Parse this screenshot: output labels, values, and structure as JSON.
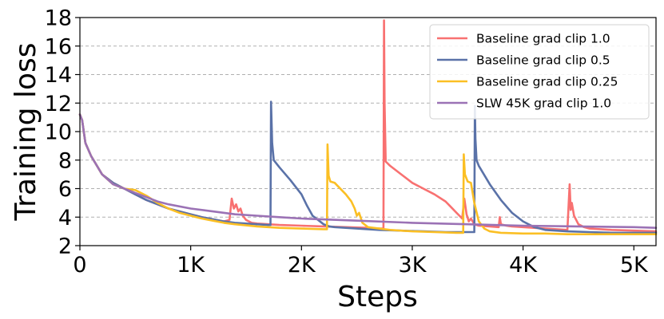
{
  "chart_data": {
    "type": "line",
    "title": "",
    "xlabel": "Steps",
    "ylabel": "Training loss",
    "xlim": [
      0,
      5200
    ],
    "ylim": [
      2,
      18
    ],
    "xticks": [
      0,
      1000,
      2000,
      3000,
      4000,
      5000
    ],
    "xtick_labels": [
      "0",
      "1K",
      "2K",
      "3K",
      "4K",
      "5K"
    ],
    "yticks": [
      2,
      4,
      6,
      8,
      10,
      12,
      14,
      16,
      18
    ],
    "ytick_labels": [
      "2",
      "4",
      "6",
      "8",
      "10",
      "12",
      "14",
      "16",
      "18"
    ],
    "grid": "horizontal-dashed",
    "legend_position": "top-right",
    "series": [
      {
        "name": "Baseline grad clip 1.0",
        "color": "#f87171",
        "x": [
          0,
          20,
          50,
          100,
          200,
          300,
          400,
          500,
          600,
          700,
          800,
          900,
          1000,
          1100,
          1200,
          1300,
          1350,
          1370,
          1390,
          1410,
          1430,
          1450,
          1470,
          1500,
          1550,
          1600,
          1700,
          1800,
          2000,
          2200,
          2400,
          2600,
          2700,
          2740,
          2745,
          2750,
          2760,
          2800,
          2900,
          3000,
          3100,
          3200,
          3300,
          3350,
          3400,
          3450,
          3470,
          3490,
          3510,
          3530,
          3560,
          3600,
          3700,
          3780,
          3790,
          3800,
          3850,
          3900,
          4000,
          4200,
          4400,
          4420,
          4430,
          4440,
          4460,
          4500,
          4550,
          4600,
          4800,
          5000,
          5200
        ],
        "values": [
          11.2,
          10.8,
          9.2,
          8.3,
          7.0,
          6.4,
          6.0,
          5.6,
          5.2,
          4.9,
          4.6,
          4.4,
          4.2,
          4.0,
          3.85,
          3.7,
          3.8,
          5.3,
          4.6,
          4.9,
          4.4,
          4.6,
          4.1,
          3.8,
          3.6,
          3.55,
          3.5,
          3.45,
          3.4,
          3.35,
          3.3,
          3.25,
          3.2,
          3.2,
          17.8,
          12.0,
          7.9,
          7.6,
          7.0,
          6.4,
          6.0,
          5.6,
          5.1,
          4.7,
          4.3,
          3.9,
          5.3,
          4.2,
          3.7,
          3.9,
          3.5,
          3.4,
          3.35,
          3.3,
          4.0,
          3.5,
          3.4,
          3.35,
          3.3,
          3.2,
          3.1,
          6.3,
          4.5,
          5.0,
          4.1,
          3.5,
          3.3,
          3.2,
          3.1,
          3.05,
          3.0
        ]
      },
      {
        "name": "Baseline grad clip 0.5",
        "color": "#5a72a8",
        "x": [
          0,
          20,
          50,
          100,
          200,
          300,
          400,
          500,
          600,
          700,
          800,
          900,
          1000,
          1100,
          1200,
          1300,
          1400,
          1500,
          1600,
          1700,
          1720,
          1725,
          1735,
          1750,
          1800,
          1900,
          2000,
          2050,
          2100,
          2150,
          2200,
          2250,
          2300,
          2500,
          2700,
          2900,
          3100,
          3300,
          3500,
          3560,
          3565,
          3570,
          3580,
          3600,
          3700,
          3800,
          3900,
          4000,
          4100,
          4200,
          4400,
          4600,
          4800,
          5000,
          5200
        ],
        "values": [
          11.2,
          10.8,
          9.2,
          8.3,
          7.0,
          6.4,
          6.0,
          5.6,
          5.2,
          4.9,
          4.6,
          4.4,
          4.2,
          4.0,
          3.85,
          3.7,
          3.6,
          3.55,
          3.5,
          3.45,
          3.45,
          12.1,
          9.2,
          8.0,
          7.5,
          6.6,
          5.6,
          4.8,
          4.1,
          3.8,
          3.5,
          3.35,
          3.3,
          3.2,
          3.1,
          3.05,
          3.0,
          2.95,
          2.95,
          2.95,
          11.8,
          9.5,
          8.0,
          7.6,
          6.3,
          5.2,
          4.3,
          3.7,
          3.3,
          3.1,
          3.0,
          2.95,
          2.9,
          2.9,
          2.9
        ]
      },
      {
        "name": "Baseline grad clip 0.25",
        "color": "#fbbf24",
        "x": [
          0,
          20,
          50,
          100,
          200,
          300,
          400,
          500,
          600,
          700,
          800,
          900,
          1000,
          1100,
          1200,
          1300,
          1400,
          1600,
          1800,
          2000,
          2200,
          2230,
          2235,
          2245,
          2260,
          2300,
          2400,
          2450,
          2480,
          2500,
          2520,
          2550,
          2600,
          2800,
          3000,
          3200,
          3400,
          3460,
          3465,
          3475,
          3500,
          3530,
          3560,
          3600,
          3650,
          3700,
          3800,
          4000,
          4200,
          4400,
          4600,
          4800,
          5000,
          5200
        ],
        "values": [
          11.2,
          10.8,
          9.2,
          8.3,
          7.0,
          6.3,
          6.0,
          5.9,
          5.5,
          5.0,
          4.6,
          4.3,
          4.1,
          3.9,
          3.75,
          3.6,
          3.5,
          3.35,
          3.25,
          3.2,
          3.15,
          3.15,
          9.1,
          6.9,
          6.5,
          6.4,
          5.6,
          5.1,
          4.6,
          4.1,
          4.3,
          3.6,
          3.3,
          3.1,
          3.0,
          2.95,
          2.9,
          2.9,
          8.4,
          7.0,
          6.5,
          6.4,
          5.0,
          3.7,
          3.2,
          3.0,
          2.9,
          2.85,
          2.85,
          2.8,
          2.8,
          2.8,
          2.8,
          2.8
        ]
      },
      {
        "name": "SLW 45K grad clip 1.0",
        "color": "#9b72b5",
        "x": [
          0,
          20,
          50,
          100,
          200,
          300,
          400,
          500,
          600,
          700,
          800,
          1000,
          1200,
          1400,
          1600,
          1800,
          2000,
          2500,
          3000,
          3500,
          4000,
          4500,
          5000,
          5200
        ],
        "values": [
          11.2,
          10.8,
          9.2,
          8.3,
          7.0,
          6.3,
          6.0,
          5.7,
          5.4,
          5.1,
          4.9,
          4.6,
          4.4,
          4.2,
          4.1,
          4.0,
          3.9,
          3.75,
          3.6,
          3.5,
          3.4,
          3.35,
          3.3,
          3.25
        ]
      }
    ]
  }
}
